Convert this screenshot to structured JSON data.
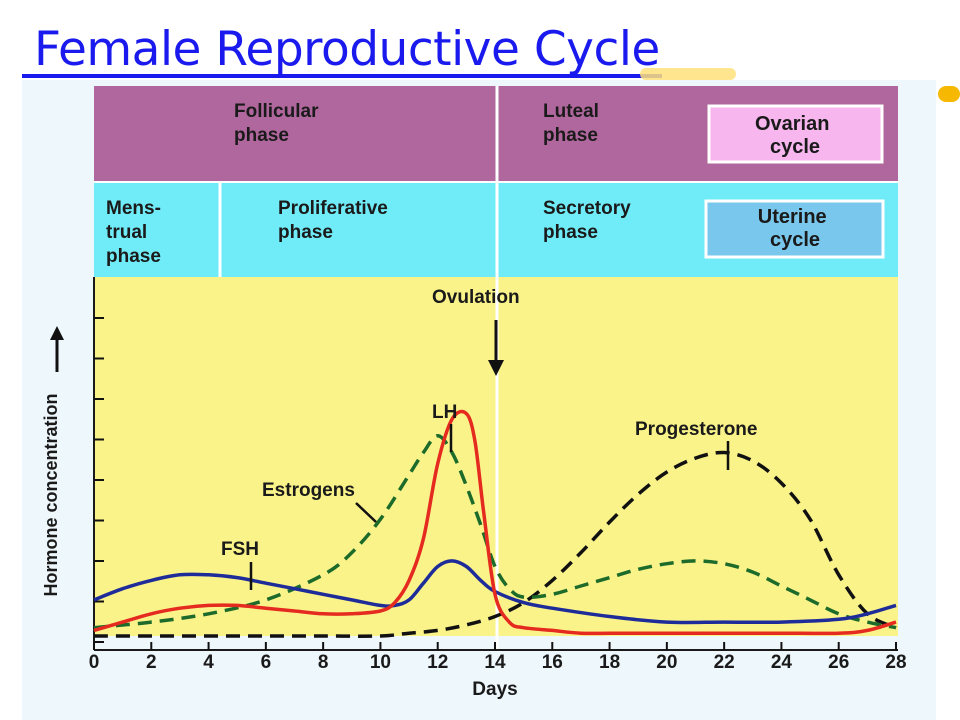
{
  "slide": {
    "title": "Female Reproductive Cycle"
  },
  "colors": {
    "title": "#1a1aee",
    "ovarian_band": "#b0679e",
    "uterine_band": "#70ecf8",
    "plot_bg": "#faf38a",
    "lh": "#e52a1f",
    "fsh": "#1e2c99",
    "estrogens": "#1d6b2a",
    "progesterone": "#111111"
  },
  "bands": {
    "ovarian": {
      "follicular": [
        "Follicular",
        "phase"
      ],
      "luteal": [
        "Luteal",
        "phase"
      ],
      "cycle_label": [
        "Ovarian",
        "cycle"
      ]
    },
    "uterine": {
      "menstrual": [
        "Mens-",
        "trual",
        "phase"
      ],
      "proliferative": [
        "Proliferative",
        "phase"
      ],
      "secretory": [
        "Secretory",
        "phase"
      ],
      "cycle_label": [
        "Uterine",
        "cycle"
      ]
    }
  },
  "chart_data": {
    "type": "line",
    "xlabel": "Days",
    "ylabel": "Hormone concentration",
    "xlim": [
      0,
      28
    ],
    "ylim": [
      0,
      1
    ],
    "x_ticks": [
      0,
      2,
      4,
      6,
      8,
      10,
      12,
      14,
      16,
      18,
      20,
      22,
      24,
      26,
      28
    ],
    "annotations": [
      {
        "text": "Ovulation",
        "day": 14
      },
      {
        "text": "LH",
        "series": "LH"
      },
      {
        "text": "Estrogens",
        "series": "Estrogens"
      },
      {
        "text": "FSH",
        "series": "FSH"
      },
      {
        "text": "Progesterone",
        "series": "Progesterone"
      }
    ],
    "series": [
      {
        "name": "LH",
        "style": "solid",
        "x": [
          0,
          1,
          2,
          3,
          4,
          5,
          6,
          7,
          8,
          9,
          10,
          10.5,
          11,
          11.5,
          12,
          12.5,
          13,
          13.3,
          13.6,
          14,
          14.5,
          15,
          16,
          17,
          18,
          20,
          22,
          24,
          26,
          27,
          28
        ],
        "y": [
          0.02,
          0.05,
          0.08,
          0.1,
          0.11,
          0.11,
          0.1,
          0.09,
          0.08,
          0.08,
          0.09,
          0.12,
          0.2,
          0.35,
          0.62,
          0.78,
          0.8,
          0.7,
          0.45,
          0.15,
          0.05,
          0.03,
          0.02,
          0.01,
          0.01,
          0.01,
          0.01,
          0.01,
          0.01,
          0.02,
          0.05
        ]
      },
      {
        "name": "FSH",
        "style": "solid",
        "x": [
          0,
          1,
          2,
          3,
          4,
          5,
          6,
          7,
          8,
          9,
          10,
          10.5,
          11,
          11.5,
          12,
          12.5,
          13,
          13.5,
          14,
          15,
          16,
          18,
          20,
          22,
          24,
          26,
          27,
          28
        ],
        "y": [
          0.13,
          0.17,
          0.2,
          0.22,
          0.22,
          0.21,
          0.19,
          0.17,
          0.15,
          0.13,
          0.11,
          0.11,
          0.13,
          0.19,
          0.25,
          0.27,
          0.25,
          0.2,
          0.16,
          0.12,
          0.1,
          0.07,
          0.05,
          0.05,
          0.05,
          0.06,
          0.08,
          0.11
        ]
      },
      {
        "name": "Estrogens",
        "style": "dashed",
        "x": [
          0,
          2,
          4,
          6,
          8,
          9,
          10,
          11,
          11.5,
          12,
          12.5,
          13,
          13.5,
          14,
          14.5,
          15,
          16,
          17,
          18,
          19,
          20,
          21,
          22,
          23,
          24,
          25,
          26,
          27,
          28
        ],
        "y": [
          0.03,
          0.05,
          0.08,
          0.13,
          0.22,
          0.3,
          0.42,
          0.58,
          0.66,
          0.72,
          0.66,
          0.54,
          0.4,
          0.25,
          0.17,
          0.14,
          0.15,
          0.18,
          0.21,
          0.24,
          0.26,
          0.27,
          0.26,
          0.23,
          0.18,
          0.13,
          0.08,
          0.05,
          0.03
        ]
      },
      {
        "name": "Progesterone",
        "style": "dashed",
        "x": [
          0,
          2,
          4,
          6,
          8,
          10,
          11,
          12,
          13,
          14,
          15,
          16,
          17,
          18,
          19,
          20,
          21,
          22,
          23,
          24,
          25,
          26,
          27,
          28
        ],
        "y": [
          0.0,
          0.0,
          0.0,
          0.0,
          0.0,
          0.0,
          0.01,
          0.02,
          0.04,
          0.07,
          0.12,
          0.2,
          0.3,
          0.41,
          0.51,
          0.59,
          0.64,
          0.66,
          0.63,
          0.55,
          0.42,
          0.22,
          0.08,
          0.03
        ]
      }
    ]
  }
}
